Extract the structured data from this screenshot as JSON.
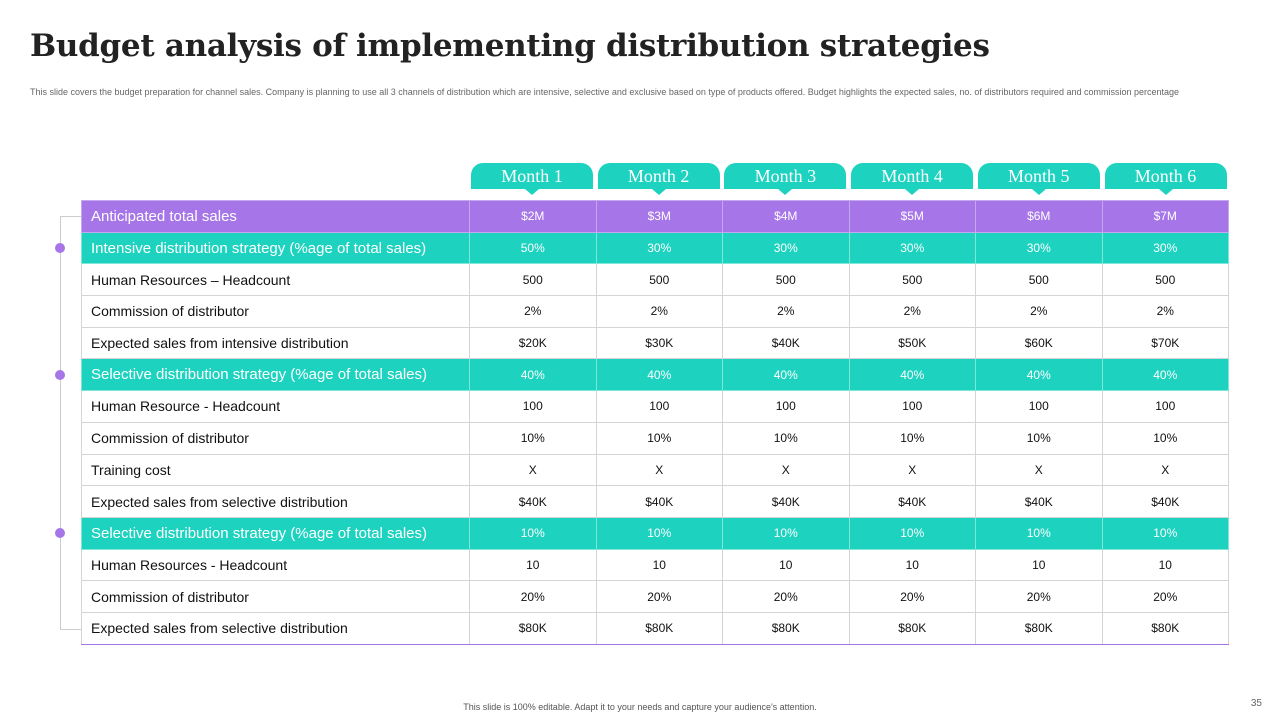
{
  "title": "Budget analysis of implementing distribution strategies",
  "description": "This slide covers the budget preparation for channel sales. Company is planning to use all 3 channels of distribution which are intensive, selective and exclusive based on type of products offered. Budget highlights the expected sales, no. of distributors required and commission percentage",
  "months": [
    "Month 1",
    "Month 2",
    "Month 3",
    "Month 4",
    "Month 5",
    "Month 6"
  ],
  "rows": [
    {
      "label": "Anticipated total sales",
      "style": "purple",
      "values": [
        "$2M",
        "$3M",
        "$4M",
        "$5M",
        "$6M",
        "$7M"
      ]
    },
    {
      "label": "Intensive  distribution strategy (%age of total sales)",
      "style": "teal",
      "values": [
        "50%",
        "30%",
        "30%",
        "30%",
        "30%",
        "30%"
      ]
    },
    {
      "label": "Human Resources – Headcount",
      "style": "plain",
      "values": [
        "500",
        "500",
        "500",
        "500",
        "500",
        "500"
      ]
    },
    {
      "label": "Commission of distributor",
      "style": "plain",
      "values": [
        "2%",
        "2%",
        "2%",
        "2%",
        "2%",
        "2%"
      ]
    },
    {
      "label": "Expected sales from intensive distribution",
      "style": "plain",
      "values": [
        "$20K",
        "$30K",
        "$40K",
        "$50K",
        "$60K",
        "$70K"
      ]
    },
    {
      "label": "Selective  distribution strategy (%age of total sales)",
      "style": "teal",
      "values": [
        "40%",
        "40%",
        "40%",
        "40%",
        "40%",
        "40%"
      ]
    },
    {
      "label": "Human Resource - Headcount",
      "style": "plain",
      "values": [
        "100",
        "100",
        "100",
        "100",
        "100",
        "100"
      ]
    },
    {
      "label": "Commission of distributor",
      "style": "plain",
      "values": [
        "10%",
        "10%",
        "10%",
        "10%",
        "10%",
        "10%"
      ]
    },
    {
      "label": "Training cost",
      "style": "plain",
      "values": [
        "X",
        "X",
        "X",
        "X",
        "X",
        "X"
      ]
    },
    {
      "label": "Expected sales from selective distribution",
      "style": "plain",
      "values": [
        "$40K",
        "$40K",
        "$40K",
        "$40K",
        "$40K",
        "$40K"
      ]
    },
    {
      "label": "Selective  distribution strategy (%age of total sales)",
      "style": "teal",
      "values": [
        "10%",
        "10%",
        "10%",
        "10%",
        "10%",
        "10%"
      ]
    },
    {
      "label": "Human Resources - Headcount",
      "style": "plain",
      "values": [
        "10",
        "10",
        "10",
        "10",
        "10",
        "10"
      ]
    },
    {
      "label": "Commission of distributor",
      "style": "plain",
      "values": [
        "20%",
        "20%",
        "20%",
        "20%",
        "20%",
        "20%"
      ]
    },
    {
      "label": "Expected sales from selective distribution",
      "style": "plain",
      "values": [
        "$80K",
        "$80K",
        "$80K",
        "$80K",
        "$80K",
        "$80K"
      ]
    }
  ],
  "colors": {
    "purple": "#a675e8",
    "teal": "#1dd3c0"
  },
  "footer": "This slide is 100% editable. Adapt it to your needs and capture your audience's attention.",
  "page_number": "35"
}
